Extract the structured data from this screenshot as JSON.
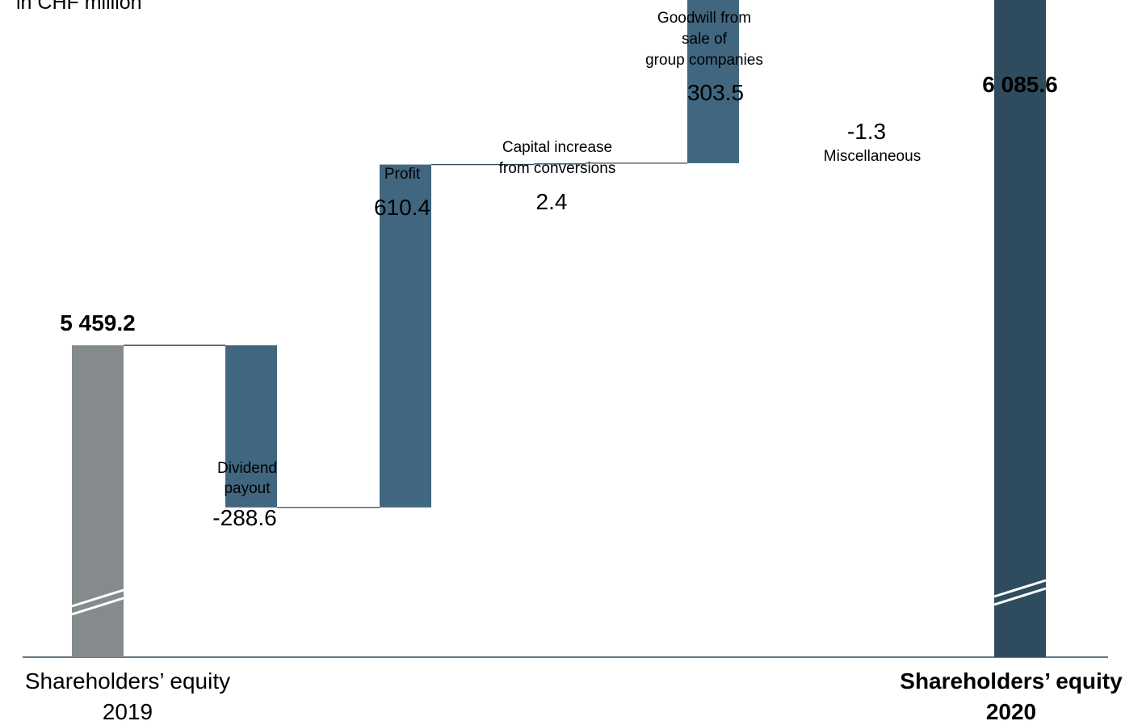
{
  "unit_label": "in CHF million",
  "colors": {
    "start_bar": "#858A8D",
    "change_bar": "#40677F",
    "end_bar": "#2F4C5F",
    "connector": "#2F4C5F",
    "axis": "#2F4C5F",
    "break_mark": "#FFFFFF"
  },
  "chart_data": {
    "type": "bar",
    "subtype": "waterfall",
    "title": "",
    "unit": "in CHF million",
    "axis_break": true,
    "categories": [
      "Shareholders’ equity 2019",
      "Dividend payout",
      "Profit",
      "Capital increase from conversions",
      "Goodwill from sale of group companies",
      "Miscellaneous",
      "Shareholders’ equity 2020"
    ],
    "values": [
      5459.2,
      -288.6,
      610.4,
      2.4,
      303.5,
      -1.3,
      6085.6
    ],
    "value_labels": [
      "5 459.2",
      "-288.6",
      "610.4",
      "2.4",
      "303.5",
      "-1.3",
      "6 085.6"
    ],
    "bar_kinds": [
      "total",
      "change",
      "change",
      "change",
      "change",
      "change",
      "total"
    ],
    "start_label": [
      "Shareholders’ equity",
      "2019"
    ],
    "end_label": [
      "Shareholders’ equity",
      "2020"
    ],
    "change_labels": [
      [
        "Dividend",
        "payout"
      ],
      [
        "Profit"
      ],
      [
        "Capital increase",
        "from conversions"
      ],
      [
        "Goodwill from",
        "sale of",
        "group companies"
      ],
      [
        "Miscellaneous"
      ]
    ]
  }
}
